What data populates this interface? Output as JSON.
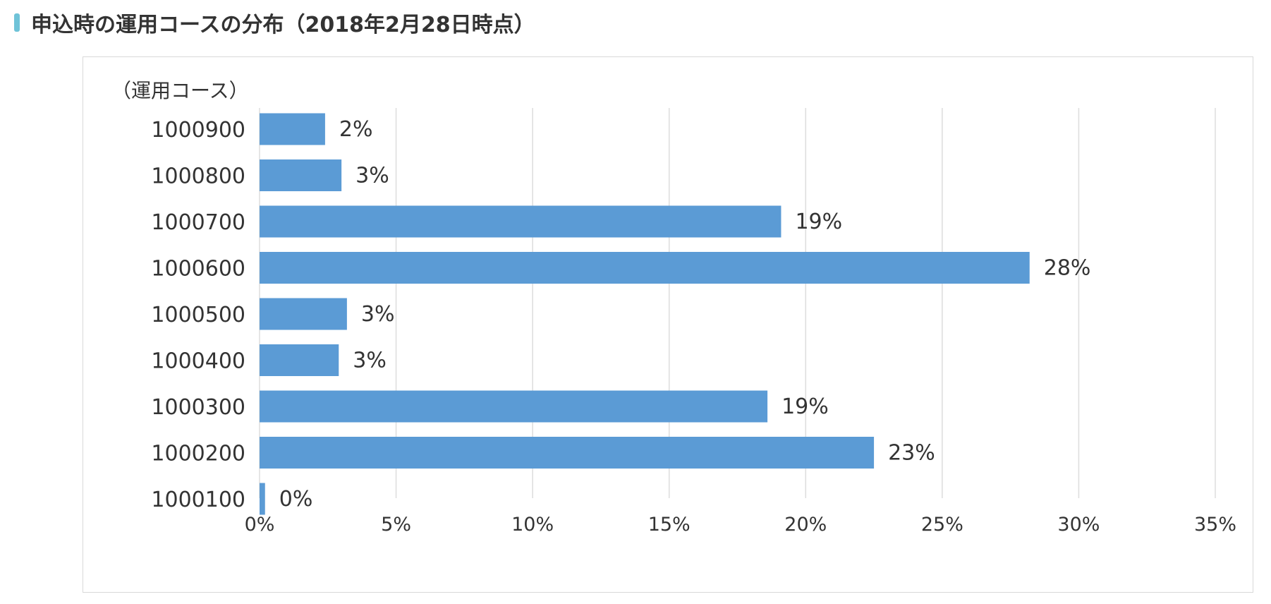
{
  "heading": {
    "title": "申込時の運用コースの分布（2018年2月28日時点）"
  },
  "chart_data": {
    "type": "bar",
    "orientation": "horizontal",
    "title": "申込時の運用コースの分布（2018年2月28日時点）",
    "ylabel": "（運用コース）",
    "xlabel": "",
    "categories": [
      "1000900",
      "1000800",
      "1000700",
      "1000600",
      "1000500",
      "1000400",
      "1000300",
      "1000200",
      "1000100"
    ],
    "values": [
      2.4,
      3.0,
      19.1,
      28.2,
      3.2,
      2.9,
      18.6,
      22.5,
      0.2
    ],
    "value_labels": [
      "2%",
      "3%",
      "19%",
      "28%",
      "3%",
      "3%",
      "19%",
      "23%",
      "0%"
    ],
    "xticks": [
      0,
      5,
      10,
      15,
      20,
      25,
      30,
      35
    ],
    "xtick_labels": [
      "0%",
      "5%",
      "10%",
      "15%",
      "20%",
      "25%",
      "30%",
      "35%"
    ],
    "xlim": [
      0,
      35
    ],
    "grid": true,
    "legend": "none",
    "bar_color": "#5b9bd5",
    "grid_color": "#dddddd"
  }
}
